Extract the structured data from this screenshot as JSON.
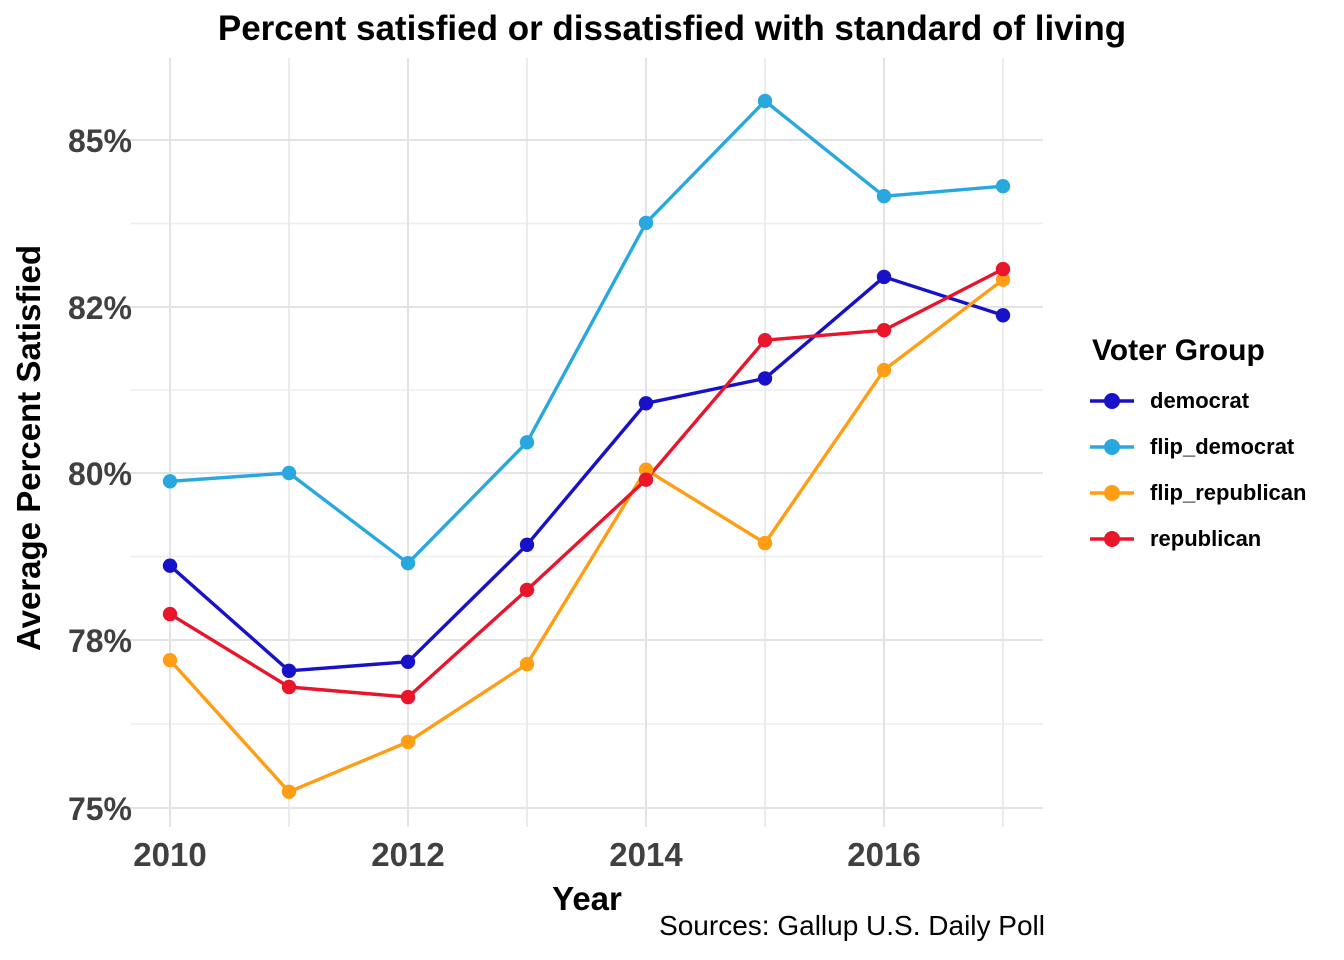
{
  "chart_data": {
    "type": "line",
    "title": "Percent satisfied or dissatisfied with standard of living",
    "xlabel": "Year",
    "ylabel": "Average Percent Satisfied",
    "caption": "Sources: Gallup U.S. Daily Poll",
    "legend_title": "Voter Group",
    "legend_position": "right",
    "grid": true,
    "background": "#ffffff",
    "x": [
      2010,
      2011,
      2012,
      2013,
      2014,
      2015,
      2016,
      2017
    ],
    "x_tick_labels": [
      "2010",
      "2012",
      "2014",
      "2016"
    ],
    "x_minor_years": [
      2011,
      2013,
      2015,
      2017
    ],
    "y_breaks": [
      75,
      78,
      80,
      82,
      85
    ],
    "y_tick_labels": [
      "75%",
      "78%",
      "80%",
      "82%",
      "85%"
    ],
    "y_scale_note": "axis breaks 75/78/80/82/85 are rendered at equal spacing (non-linear scale)",
    "tick_label_color": "#404040",
    "grid_major_color": "#e3e3e3",
    "grid_minor_color": "#ededed",
    "series": [
      {
        "name": "democrat",
        "color": "#1712C8",
        "values": [
          78.89,
          77.45,
          77.61,
          79.14,
          80.84,
          81.14,
          82.54,
          81.9
        ]
      },
      {
        "name": "flip_democrat",
        "color": "#29A8E0",
        "values": [
          79.9,
          80.0,
          78.92,
          80.37,
          83.51,
          85.7,
          83.99,
          84.17
        ]
      },
      {
        "name": "flip_republican",
        "color": "#FF9E15",
        "values": [
          77.64,
          75.29,
          76.18,
          77.57,
          80.04,
          79.16,
          81.24,
          82.49
        ]
      },
      {
        "name": "republican",
        "color": "#E8152B",
        "values": [
          78.31,
          77.16,
          76.98,
          78.6,
          79.92,
          81.6,
          81.72,
          82.68
        ]
      }
    ]
  }
}
